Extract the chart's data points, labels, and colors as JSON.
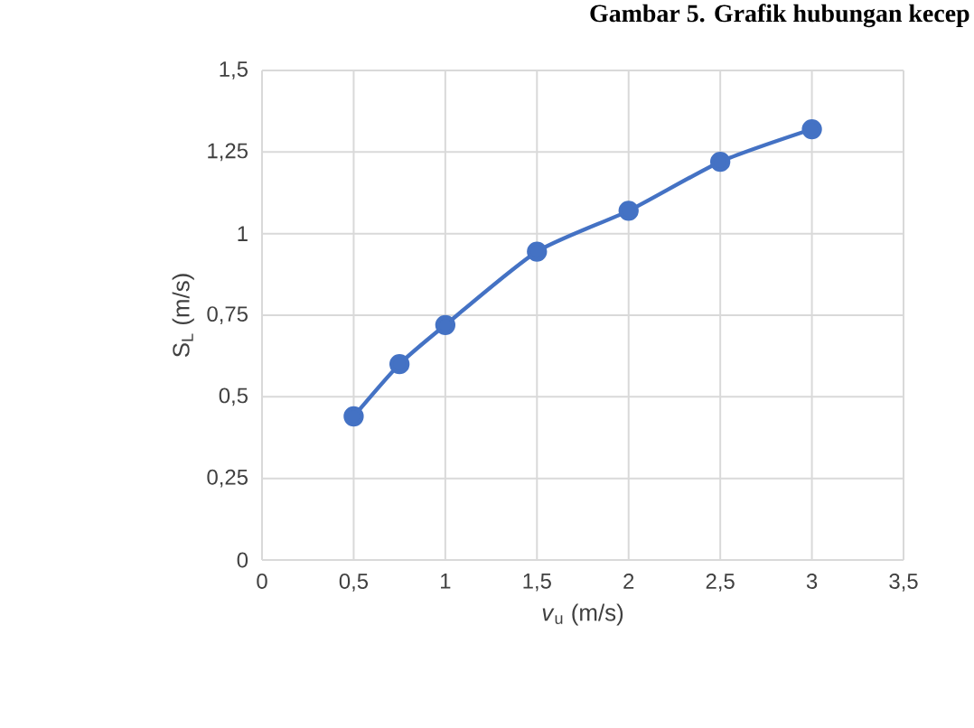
{
  "chart_data": {
    "type": "line",
    "title": "Gambar 5. Grafik hubungan kecep",
    "xlabel": "*v*$_{u}$ (m/s)",
    "ylabel": "S$_{L}$ (m/s)",
    "x": [
      0.5,
      0.75,
      1,
      1.5,
      2,
      2.5,
      3
    ],
    "series": [
      {
        "color": "#4472c4",
        "values": [
          0.44,
          0.6,
          0.72,
          0.945,
          1.07,
          1.22,
          1.32
        ]
      }
    ],
    "xlim": [
      0,
      3.5
    ],
    "ylim": [
      0,
      1.5
    ],
    "xticks": [
      0,
      {
        "value": 0.5,
        "label": "0,5"
      },
      1,
      {
        "value": 1.5,
        "label": "1,5"
      },
      2,
      {
        "value": 2.5,
        "label": "2,5"
      },
      3,
      {
        "value": 3.5,
        "label": "3,5"
      }
    ],
    "yticks": [
      0,
      {
        "value": 0.25,
        "label": "0,25"
      },
      {
        "value": 0.5,
        "label": "0,5"
      },
      {
        "value": 0.75,
        "label": "0,75"
      },
      1,
      {
        "value": 1.25,
        "label": "1,25"
      },
      {
        "value": 1.5,
        "label": "1,5"
      }
    ],
    "grid": true,
    "legend": false,
    "marker": "circle",
    "line_style": "solid"
  }
}
